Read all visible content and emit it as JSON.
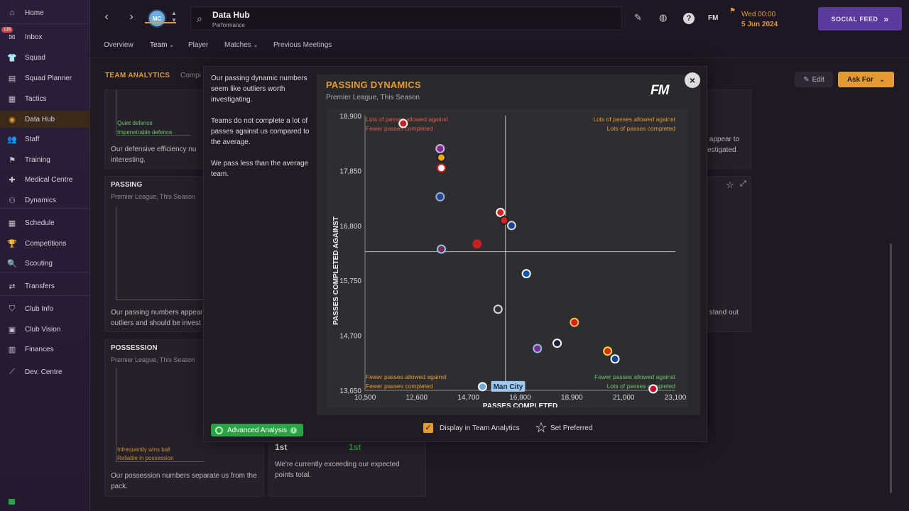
{
  "sidebar": {
    "items": [
      {
        "label": "Home",
        "icon": "home-icon",
        "glyph": "⌂"
      },
      {
        "label": "Inbox",
        "icon": "inbox-icon",
        "glyph": "✉"
      },
      {
        "label": "Squad",
        "icon": "shirt-icon",
        "glyph": "👕"
      },
      {
        "label": "Squad Planner",
        "icon": "clipboard-icon",
        "glyph": "▤"
      },
      {
        "label": "Tactics",
        "icon": "tactics-board-icon",
        "glyph": "▦"
      },
      {
        "label": "Data Hub",
        "icon": "data-hub-icon",
        "glyph": "◉"
      },
      {
        "label": "Staff",
        "icon": "staff-icon",
        "glyph": "👥"
      },
      {
        "label": "Training",
        "icon": "training-icon",
        "glyph": "⚑"
      },
      {
        "label": "Medical Centre",
        "icon": "medical-icon",
        "glyph": "✚"
      },
      {
        "label": "Dynamics",
        "icon": "dynamics-icon",
        "glyph": "⚇"
      },
      {
        "label": "Schedule",
        "icon": "calendar-icon",
        "glyph": "▦"
      },
      {
        "label": "Competitions",
        "icon": "trophy-icon",
        "glyph": "🏆"
      },
      {
        "label": "Scouting",
        "icon": "scouting-icon",
        "glyph": "🔍"
      },
      {
        "label": "Transfers",
        "icon": "transfers-icon",
        "glyph": "⇄"
      },
      {
        "label": "Club Info",
        "icon": "shield-icon",
        "glyph": "⛉"
      },
      {
        "label": "Club Vision",
        "icon": "briefcase-icon",
        "glyph": "▣"
      },
      {
        "label": "Finances",
        "icon": "finances-icon",
        "glyph": "▥"
      },
      {
        "label": "Dev. Centre",
        "icon": "dev-centre-icon",
        "glyph": "⟋"
      }
    ],
    "inbox_badge": "128"
  },
  "header": {
    "search_title": "Data Hub",
    "search_sub": "Performance",
    "club_badge_text": "MC",
    "date_line1": "Wed 00:00",
    "date_line2": "5 Jun 2024",
    "social_feed": "SOCIAL FEED",
    "fm_label": "FM",
    "help_label": "?"
  },
  "subnav": {
    "items": [
      "Overview",
      "Team",
      "Player",
      "Matches",
      "Previous Meetings"
    ]
  },
  "main": {
    "section_title": "TEAM ANALYTICS",
    "section_sub": "Compi",
    "edit_label": "Edit",
    "askfor_label": "Ask For"
  },
  "cards": {
    "defence_quad_a": "Quiet defence",
    "defence_quad_b": "Impenetrable defence",
    "defence_text": "Our defensive efficiency nu interesting.",
    "passing_title": "PASSING",
    "passing_sub": "Premier League, This Season",
    "passing_text": "Our passing numbers appear outliers and should be invest",
    "possession_title": "POSSESSION",
    "possession_sub": "Premier League, This Season",
    "possession_quad_a": "Infrequently wins ball",
    "possession_quad_b": "Reliable in possession",
    "possession_text": "Our possession numbers separate us from the pack.",
    "rank_left": "1st",
    "rank_right": "1st",
    "points_text": "We're currently exceeding our expected points total.",
    "right_top_text": "s appear to vestigated",
    "right_mid_text": "s stand out"
  },
  "modal": {
    "left_texts": [
      "Our passing dynamic numbers seem like outliers worth investigating.",
      "Teams do not complete a lot of passes against us compared to the average.",
      "We pass less than the average team."
    ],
    "advanced_analysis": "Advanced Analysis",
    "display_in_team_analytics": "Display in Team Analytics",
    "set_preferred": "Set Preferred",
    "fm_logo": "FM",
    "close_glyph": "×"
  },
  "chart_data": {
    "type": "scatter",
    "title": "PASSING DYNAMICS",
    "subtitle": "Premier League, This Season",
    "xlabel": "PASSES COMPLETED",
    "ylabel": "PASSES COMPLETED AGAINST",
    "xlim": [
      10500,
      23100
    ],
    "ylim": [
      13650,
      18900
    ],
    "x_ticks": [
      10500,
      12600,
      14700,
      16800,
      18900,
      21000,
      23100
    ],
    "x_tick_labels": [
      "10,500",
      "12,600",
      "14,700",
      "16,800",
      "18,900",
      "21,000",
      "23,100"
    ],
    "y_ticks": [
      13650,
      14700,
      15750,
      16800,
      17850,
      18900
    ],
    "y_tick_labels": [
      "13,650",
      "14,700",
      "15,750",
      "16,800",
      "17,850",
      "18,900"
    ],
    "x_mean": 16200,
    "y_mean": 16300,
    "quadrant_labels": {
      "top_left": [
        "Lots of passes allowed against",
        "Fewer passes completed"
      ],
      "top_right": [
        "Lots of passes allowed against",
        "Lots of passes completed"
      ],
      "bottom_left": [
        "Fewer passes allowed against",
        "Fewer passes completed"
      ],
      "bottom_right": [
        "Fewer passes allowed against",
        "Lots of passes completed"
      ]
    },
    "quadrant_colors": {
      "top_left": "#e05a4a",
      "top_right": "#e39a32",
      "bottom_left": "#e39a32",
      "bottom_right": "#6bc46b"
    },
    "highlight_label": "Man City",
    "points": [
      {
        "x": 12050,
        "y": 18750,
        "color": "#c82020",
        "ring": "#ffffff"
      },
      {
        "x": 13550,
        "y": 18270,
        "color": "#7a2d8a",
        "ring": "#d8b0e0"
      },
      {
        "x": 13600,
        "y": 18100,
        "color": "#f2a900",
        "ring": "#222222"
      },
      {
        "x": 13600,
        "y": 17900,
        "color": "#ffffff",
        "ring": "#cc2222"
      },
      {
        "x": 13550,
        "y": 17350,
        "color": "#274488",
        "ring": "#8fb0e0"
      },
      {
        "x": 13600,
        "y": 16350,
        "color": "#7a2d4a",
        "ring": "#8fc0e8"
      },
      {
        "x": 15050,
        "y": 16450,
        "color": "#c82020",
        "ring": "#c82020"
      },
      {
        "x": 16000,
        "y": 17050,
        "color": "#d82020",
        "ring": "#ffffff"
      },
      {
        "x": 16150,
        "y": 16900,
        "color": "#d82020",
        "ring": "#222222"
      },
      {
        "x": 16450,
        "y": 16800,
        "color": "#1b458f",
        "ring": "#d8d8d8"
      },
      {
        "x": 17050,
        "y": 15880,
        "color": "#0057b8",
        "ring": "#ffffff"
      },
      {
        "x": 15900,
        "y": 15200,
        "color": "#333333",
        "ring": "#d8d8d8"
      },
      {
        "x": 19000,
        "y": 14950,
        "color": "#d82020",
        "ring": "#f0c040"
      },
      {
        "x": 17500,
        "y": 14450,
        "color": "#7a2d8a",
        "ring": "#8fc0e8"
      },
      {
        "x": 18300,
        "y": 14550,
        "color": "#1a2040",
        "ring": "#ffffff"
      },
      {
        "x": 20350,
        "y": 14400,
        "color": "#da291c",
        "ring": "#fbe122"
      },
      {
        "x": 20650,
        "y": 14250,
        "color": "#034694",
        "ring": "#ffffff"
      },
      {
        "x": 15270,
        "y": 13720,
        "color": "#6cabdd",
        "ring": "#ffffff",
        "highlight": true
      },
      {
        "x": 22200,
        "y": 13620,
        "color": "#c8102e",
        "ring": "#ffffff"
      }
    ]
  }
}
